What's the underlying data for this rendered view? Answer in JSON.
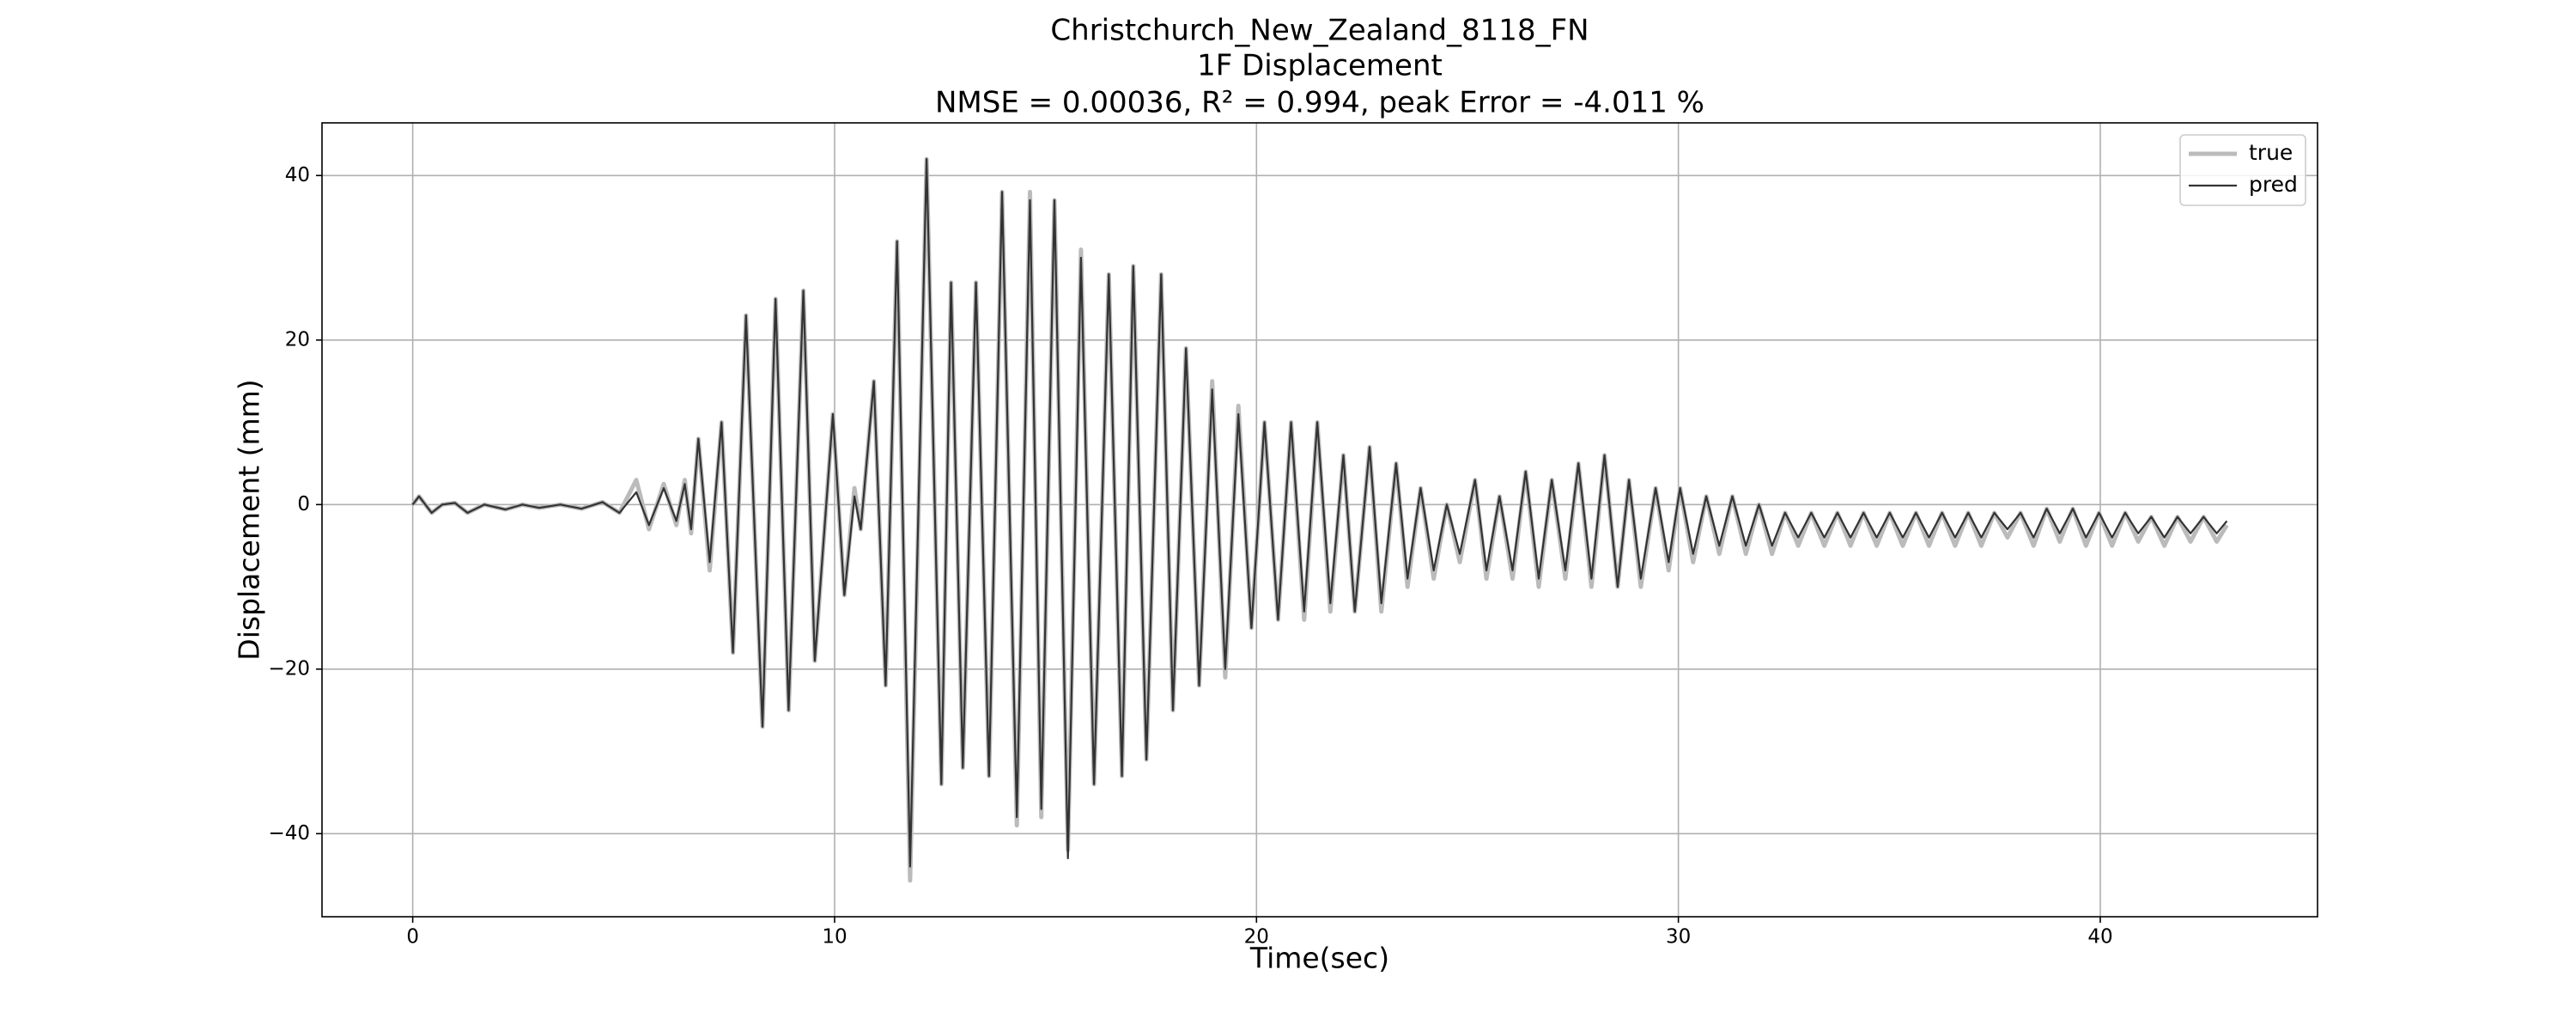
{
  "chart_data": {
    "type": "line",
    "title": [
      "Christchurch_New_Zealand_8118_FN",
      "1F Displacement",
      "NMSE = 0.00036, R² = 0.994, peak Error = -4.011 %"
    ],
    "xlabel": "Time(sec)",
    "ylabel": "Displacement (mm)",
    "xlim": [
      -2.15,
      45.15
    ],
    "ylim": [
      -50.1,
      46.4
    ],
    "xticks": [
      0,
      10,
      20,
      30,
      40
    ],
    "yticks": [
      {
        "value": -40,
        "label": "−40"
      },
      {
        "value": -20,
        "label": "−20"
      },
      0,
      20,
      40
    ],
    "grid": true,
    "legend": "upper right",
    "x": [
      0,
      0.15,
      0.45,
      0.7,
      1.0,
      1.3,
      1.7,
      2.2,
      2.6,
      3.0,
      3.5,
      4.0,
      4.5,
      4.9,
      5.3,
      5.6,
      5.95,
      6.25,
      6.45,
      6.6,
      6.77,
      7.04,
      7.32,
      7.59,
      7.9,
      8.29,
      8.6,
      8.91,
      9.26,
      9.53,
      9.96,
      10.23,
      10.47,
      10.62,
      10.93,
      11.21,
      11.48,
      11.79,
      12.18,
      12.53,
      12.76,
      13.04,
      13.35,
      13.66,
      13.97,
      14.32,
      14.63,
      14.9,
      15.21,
      15.53,
      15.84,
      16.15,
      16.5,
      16.81,
      17.08,
      17.39,
      17.74,
      18.02,
      18.33,
      18.64,
      18.95,
      19.26,
      19.57,
      19.88,
      20.19,
      20.51,
      20.82,
      21.13,
      21.44,
      21.75,
      22.06,
      22.33,
      22.68,
      22.96,
      23.31,
      23.58,
      23.89,
      24.2,
      24.51,
      24.82,
      25.18,
      25.45,
      25.76,
      26.07,
      26.38,
      26.69,
      27.0,
      27.32,
      27.63,
      27.94,
      28.25,
      28.56,
      28.83,
      29.11,
      29.46,
      29.77,
      30.04,
      30.35,
      30.66,
      30.97,
      31.28,
      31.6,
      31.91,
      32.22,
      32.53,
      32.84,
      33.15,
      33.46,
      33.77,
      34.08,
      34.39,
      34.7,
      35.01,
      35.32,
      35.63,
      35.94,
      36.25,
      36.56,
      36.87,
      37.18,
      37.49,
      37.8,
      38.11,
      38.42,
      38.73,
      39.04,
      39.35,
      39.66,
      39.97,
      40.28,
      40.59,
      40.9,
      41.21,
      41.52,
      41.83,
      42.14,
      42.45,
      42.76,
      43.0
    ],
    "series": [
      {
        "name": "true",
        "color": "#bbbbbb",
        "values": [
          0,
          1,
          -1,
          0,
          0.2,
          -1,
          0,
          -0.6,
          0,
          -0.4,
          0,
          -0.5,
          0.3,
          -1,
          3,
          -3,
          2.5,
          -2.5,
          3,
          -3.5,
          8,
          -8,
          10,
          -18,
          23,
          -27,
          25,
          -25,
          26,
          -19,
          11,
          -11,
          2,
          -3,
          15,
          -22,
          32,
          -45.7,
          42,
          -34,
          27,
          -32,
          27,
          -33,
          38,
          -39,
          38,
          -38,
          37,
          -42,
          31,
          -34,
          28,
          -33,
          29,
          -31,
          28,
          -25,
          19,
          -22,
          15,
          -21,
          12,
          -15,
          10,
          -14,
          10,
          -14,
          10,
          -13,
          6,
          -13,
          7,
          -13,
          5,
          -10,
          2,
          -9,
          0,
          -7,
          3,
          -9,
          1,
          -9,
          4,
          -10,
          3,
          -9,
          5,
          -10,
          6,
          -10,
          3,
          -10,
          2,
          -8,
          2,
          -7,
          1,
          -6,
          1,
          -6,
          0,
          -6,
          -1,
          -5,
          -1,
          -5,
          -1,
          -5,
          -1,
          -5,
          -1,
          -5,
          -1,
          -5,
          -1,
          -5,
          -1,
          -5,
          -1,
          -4,
          -1,
          -5,
          -0.5,
          -4.5,
          -0.5,
          -5,
          -1,
          -5,
          -1,
          -4.5,
          -1.5,
          -5,
          -1.5,
          -4.5,
          -1.5,
          -4.5,
          -2.5
        ]
      },
      {
        "name": "pred",
        "color": "#333333",
        "values": [
          0,
          1,
          -1,
          0,
          0.2,
          -1,
          0,
          -0.6,
          0,
          -0.4,
          0,
          -0.5,
          0.3,
          -1,
          1.5,
          -2.5,
          2,
          -2,
          2.5,
          -3,
          8,
          -7,
          10,
          -18,
          23,
          -27,
          25,
          -25,
          26,
          -19,
          11,
          -11,
          1,
          -3,
          15,
          -22,
          32,
          -44,
          42,
          -34,
          27,
          -32,
          27,
          -33,
          38,
          -38,
          37,
          -37,
          37,
          -43,
          30,
          -34,
          28,
          -33,
          29,
          -31,
          28,
          -25,
          19,
          -22,
          14,
          -20,
          11,
          -15,
          10,
          -14,
          10,
          -13,
          10,
          -12,
          6,
          -13,
          7,
          -12,
          5,
          -9,
          2,
          -8,
          0,
          -6,
          3,
          -8,
          1,
          -8,
          4,
          -9,
          3,
          -8,
          5,
          -9,
          6,
          -10,
          3,
          -9,
          2,
          -7,
          2,
          -6,
          1,
          -5,
          1,
          -5,
          0,
          -5,
          -1,
          -4,
          -1,
          -4,
          -1,
          -4,
          -1,
          -4,
          -1,
          -4,
          -1,
          -4,
          -1,
          -4,
          -1,
          -4,
          -1,
          -3,
          -1,
          -4,
          -0.5,
          -3.5,
          -0.5,
          -4,
          -1,
          -4,
          -1,
          -3.5,
          -1.5,
          -4,
          -1.5,
          -3.5,
          -1.5,
          -3.5,
          -2
        ]
      }
    ]
  }
}
